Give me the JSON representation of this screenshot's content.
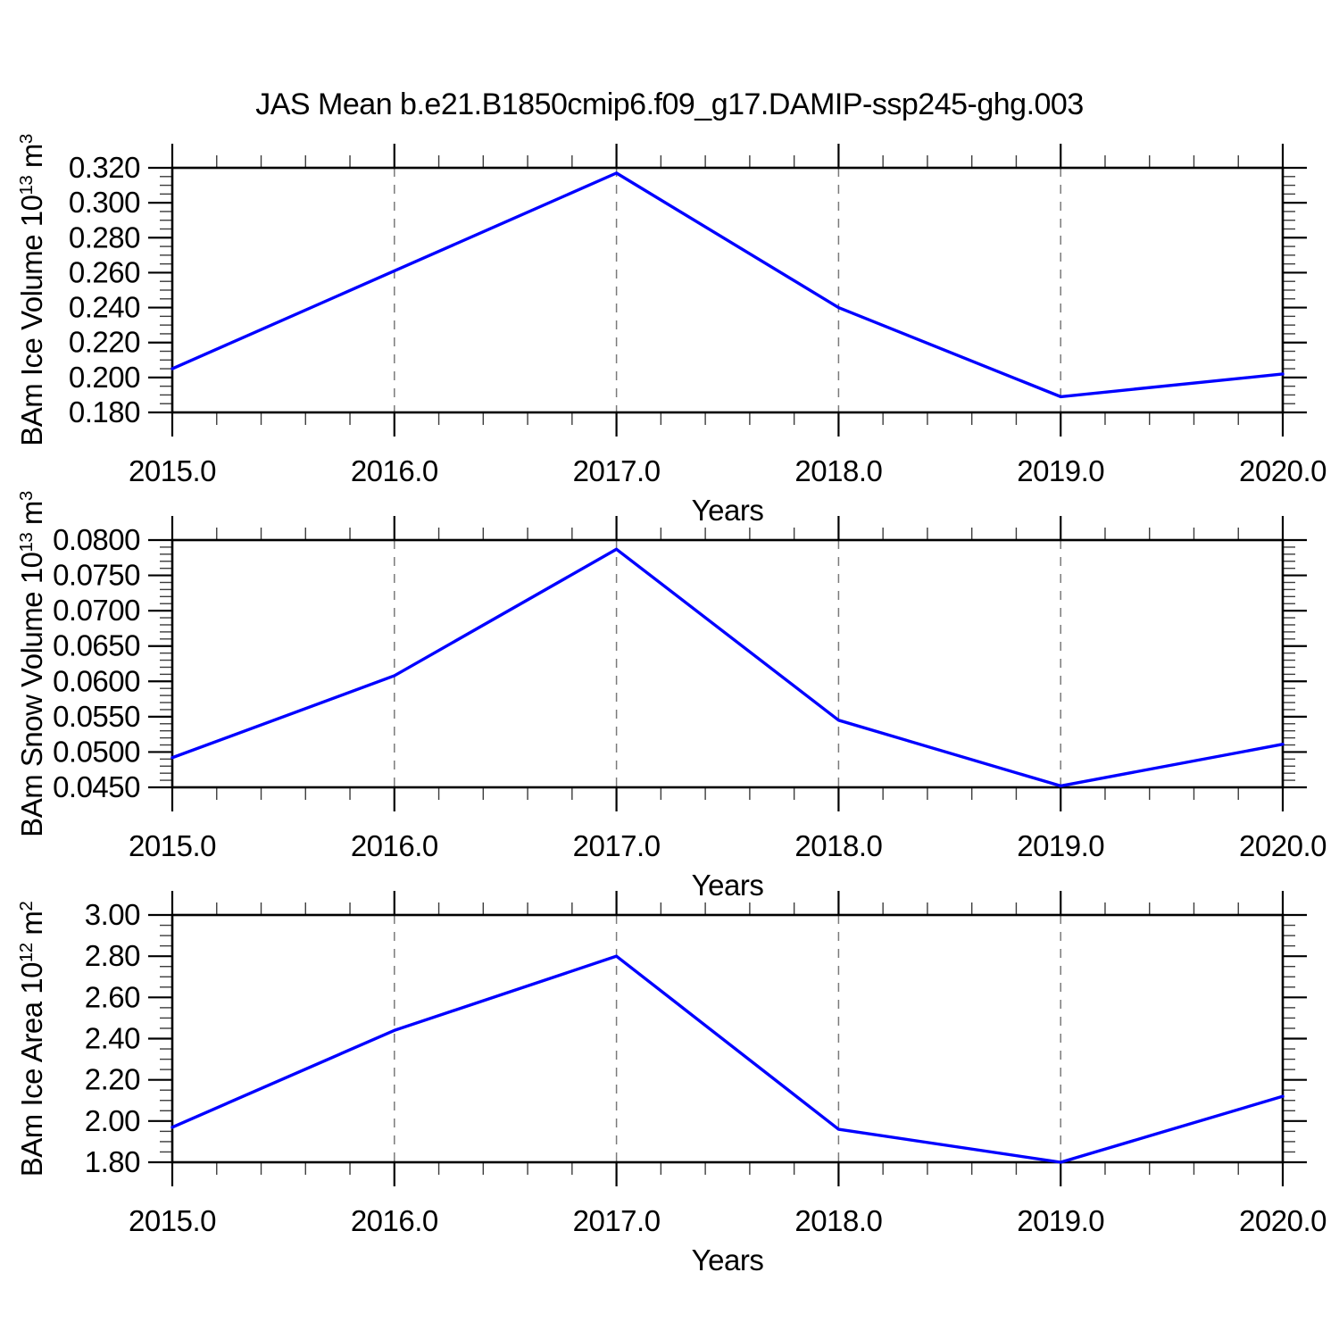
{
  "title": "JAS Mean b.e21.B1850cmip6.f09_g17.DAMIP-ssp245-ghg.003",
  "colors": {
    "line": "#0000ff",
    "frame": "#000000",
    "grid": "#7a7a7a",
    "major_tick": "#000000",
    "minor_tick": "#3c3c3c"
  },
  "chart_data": [
    {
      "type": "line",
      "panel": "ice-volume",
      "ylabel": {
        "prefix": "BAm Ice Volume 10",
        "exp": "13",
        "unit": " m",
        "unit_exp": "3"
      },
      "xlabel": "Years",
      "x": [
        2015,
        2016,
        2017,
        2018,
        2019,
        2020
      ],
      "y": [
        0.205,
        0.261,
        0.317,
        0.24,
        0.189,
        0.202
      ],
      "xlim": [
        2015,
        2020
      ],
      "ylim": [
        0.18,
        0.32
      ],
      "x_tick_values": [
        2015,
        2016,
        2017,
        2018,
        2019,
        2020
      ],
      "x_tick_labels": [
        "2015.0",
        "2016.0",
        "2017.0",
        "2018.0",
        "2019.0",
        "2020.0"
      ],
      "y_tick_values": [
        0.18,
        0.2,
        0.22,
        0.24,
        0.26,
        0.28,
        0.3,
        0.32
      ],
      "y_tick_labels": [
        "0.180",
        "0.200",
        "0.220",
        "0.240",
        "0.260",
        "0.280",
        "0.300",
        "0.320"
      ],
      "x_minor_per_major": 5,
      "y_minor_per_major": 4,
      "grid_x": [
        2016,
        2017,
        2018,
        2019
      ],
      "legend": "none",
      "grid": "vertical-dashed"
    },
    {
      "type": "line",
      "panel": "snow-volume",
      "ylabel": {
        "prefix": "BAm Snow Volume 10",
        "exp": "13",
        "unit": " m",
        "unit_exp": "3"
      },
      "xlabel": "Years",
      "x": [
        2015,
        2016,
        2017,
        2018,
        2019,
        2020
      ],
      "y": [
        0.0492,
        0.0608,
        0.0787,
        0.0545,
        0.0452,
        0.0511
      ],
      "xlim": [
        2015,
        2020
      ],
      "ylim": [
        0.045,
        0.08
      ],
      "x_tick_values": [
        2015,
        2016,
        2017,
        2018,
        2019,
        2020
      ],
      "x_tick_labels": [
        "2015.0",
        "2016.0",
        "2017.0",
        "2018.0",
        "2019.0",
        "2020.0"
      ],
      "y_tick_values": [
        0.045,
        0.05,
        0.055,
        0.06,
        0.065,
        0.07,
        0.075,
        0.08
      ],
      "y_tick_labels": [
        "0.0450",
        "0.0500",
        "0.0550",
        "0.0600",
        "0.0650",
        "0.0700",
        "0.0750",
        "0.0800"
      ],
      "x_minor_per_major": 5,
      "y_minor_per_major": 5,
      "grid_x": [
        2016,
        2017,
        2018,
        2019
      ],
      "legend": "none",
      "grid": "vertical-dashed"
    },
    {
      "type": "line",
      "panel": "ice-area",
      "ylabel": {
        "prefix": "BAm Ice Area 10",
        "exp": "12",
        "unit": " m",
        "unit_exp": "2"
      },
      "xlabel": "Years",
      "x": [
        2015,
        2016,
        2017,
        2018,
        2019,
        2020
      ],
      "y": [
        1.97,
        2.44,
        2.8,
        1.96,
        1.8,
        2.12
      ],
      "xlim": [
        2015,
        2020
      ],
      "ylim": [
        1.8,
        3.0
      ],
      "x_tick_values": [
        2015,
        2016,
        2017,
        2018,
        2019,
        2020
      ],
      "x_tick_labels": [
        "2015.0",
        "2016.0",
        "2017.0",
        "2018.0",
        "2019.0",
        "2020.0"
      ],
      "y_tick_values": [
        1.8,
        2.0,
        2.2,
        2.4,
        2.6,
        2.8,
        3.0
      ],
      "y_tick_labels": [
        "1.80",
        "2.00",
        "2.20",
        "2.40",
        "2.60",
        "2.80",
        "3.00"
      ],
      "x_minor_per_major": 5,
      "y_minor_per_major": 4,
      "grid_x": [
        2016,
        2017,
        2018,
        2019
      ],
      "legend": "none",
      "grid": "vertical-dashed"
    }
  ]
}
